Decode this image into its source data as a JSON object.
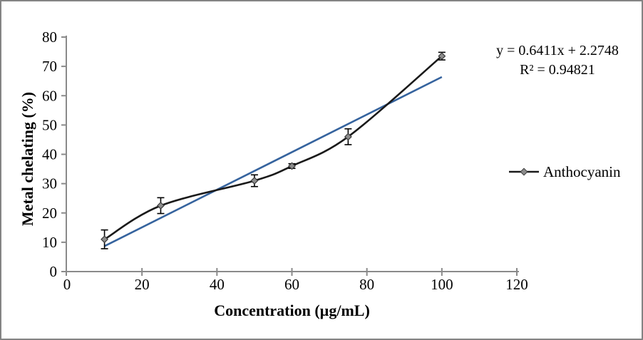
{
  "figure": {
    "background": "#ffffff",
    "border_color": "#848484"
  },
  "chart_data": {
    "type": "line",
    "title": "",
    "xlabel": "Concentration (µg/mL)",
    "ylabel": "Metal chelating (%)",
    "xlim": [
      0,
      120
    ],
    "ylim": [
      0,
      80
    ],
    "xticks": [
      0,
      20,
      40,
      60,
      80,
      100,
      120
    ],
    "yticks": [
      0,
      10,
      20,
      30,
      40,
      50,
      60,
      70,
      80
    ],
    "grid": false,
    "axis_color": "#8a8a8a",
    "text_color": "#000000",
    "legend": {
      "position": "right",
      "entries": [
        "Anthocyanin"
      ]
    },
    "series": [
      {
        "name": "Anthocyanin",
        "type": "smooth-line",
        "color": "#1a1a1a",
        "marker": "diamond",
        "marker_fill": "#8c8c8c",
        "marker_stroke": "#3a3a3a",
        "x": [
          10,
          25,
          50,
          60,
          75,
          100
        ],
        "y": [
          11,
          22.5,
          31,
          36,
          46,
          73.5
        ],
        "error_y": [
          3.2,
          2.7,
          2,
          0.8,
          2.7,
          1.3
        ]
      },
      {
        "name": "Linear trendline",
        "type": "linear-trendline",
        "color": "#35639e",
        "x_start": 10,
        "x_end": 100,
        "slope": 0.6411,
        "intercept": 2.2748
      }
    ],
    "annotation": {
      "line1": "y = 0.6411x + 2.2748",
      "line2": "R² = 0.94821"
    }
  }
}
